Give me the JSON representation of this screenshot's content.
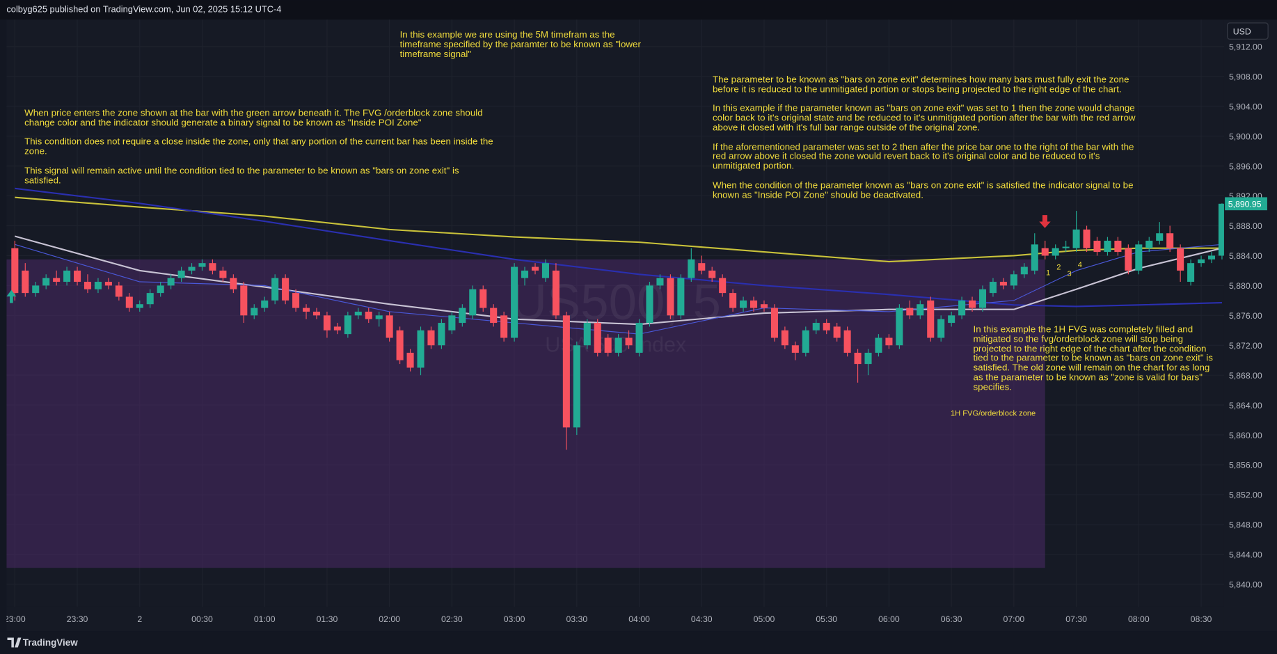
{
  "header": "colbyg625 published on TradingView.com, Jun 02, 2025 15:12 UTC-4",
  "footer": "TradingView",
  "currency": "USD",
  "chart_data": {
    "type": "candlestick",
    "watermark": "US500, 5",
    "watermark_subtitle": "USA 500 Index",
    "up_color": "#22ab94",
    "down_color": "#f7525f",
    "grid": true,
    "ylim": [
      5837,
      5915.6
    ],
    "yticks": [
      {
        "value": 5840,
        "label": "5,840.00"
      },
      {
        "value": 5844,
        "label": "5,844.00"
      },
      {
        "value": 5848,
        "label": "5,848.00"
      },
      {
        "value": 5852,
        "label": "5,852.00"
      },
      {
        "value": 5856,
        "label": "5,856.00"
      },
      {
        "value": 5860,
        "label": "5,860.00"
      },
      {
        "value": 5864,
        "label": "5,864.00"
      },
      {
        "value": 5868,
        "label": "5,868.00"
      },
      {
        "value": 5872,
        "label": "5,872.00"
      },
      {
        "value": 5876,
        "label": "5,876.00"
      },
      {
        "value": 5880,
        "label": "5,880.00"
      },
      {
        "value": 5884,
        "label": "5,884.00"
      },
      {
        "value": 5888,
        "label": "5,888.00"
      },
      {
        "value": 5892,
        "label": "5,892.00"
      },
      {
        "value": 5896,
        "label": "5,896.00"
      },
      {
        "value": 5900,
        "label": "5,900.00"
      },
      {
        "value": 5904,
        "label": "5,904.00"
      },
      {
        "value": 5908,
        "label": "5,908.00"
      },
      {
        "value": 5912,
        "label": "5,912.00"
      }
    ],
    "xlim": [
      "22:56",
      "08:41"
    ],
    "xticks": [
      "23:00",
      "23:30",
      {
        "value": "00:00",
        "label": "2"
      },
      "00:30",
      "01:00",
      "01:30",
      "02:00",
      "02:30",
      "03:00",
      "03:30",
      "04:00",
      "04:30",
      "05:00",
      "05:30",
      "06:00",
      "06:30",
      "07:00",
      "07:30",
      "08:00",
      "08:30"
    ],
    "last_price_label": "5,890.95",
    "x": [
      "23:00",
      "23:05",
      "23:10",
      "23:15",
      "23:20",
      "23:25",
      "23:30",
      "23:35",
      "23:40",
      "23:45",
      "23:50",
      "23:55",
      "00:00",
      "00:05",
      "00:10",
      "00:15",
      "00:20",
      "00:25",
      "00:30",
      "00:35",
      "00:40",
      "00:45",
      "00:50",
      "00:55",
      "01:00",
      "01:05",
      "01:10",
      "01:15",
      "01:20",
      "01:25",
      "01:30",
      "01:35",
      "01:40",
      "01:45",
      "01:50",
      "01:55",
      "02:00",
      "02:05",
      "02:10",
      "02:15",
      "02:20",
      "02:25",
      "02:30",
      "02:35",
      "02:40",
      "02:45",
      "02:50",
      "02:55",
      "03:00",
      "03:05",
      "03:10",
      "03:15",
      "03:20",
      "03:25",
      "03:30",
      "03:35",
      "03:40",
      "03:45",
      "03:50",
      "03:55",
      "04:00",
      "04:05",
      "04:10",
      "04:15",
      "04:20",
      "04:25",
      "04:30",
      "04:35",
      "04:40",
      "04:45",
      "04:50",
      "04:55",
      "05:00",
      "05:05",
      "05:10",
      "05:15",
      "05:20",
      "05:25",
      "05:30",
      "05:35",
      "05:40",
      "05:45",
      "05:50",
      "05:55",
      "06:00",
      "06:05",
      "06:10",
      "06:15",
      "06:20",
      "06:25",
      "06:30",
      "06:35",
      "06:40",
      "06:45",
      "06:50",
      "06:55",
      "07:00",
      "07:05",
      "07:10",
      "07:15",
      "07:20",
      "07:25",
      "07:30",
      "07:35",
      "07:40",
      "07:45",
      "07:50",
      "07:55",
      "08:00",
      "08:05",
      "08:10",
      "08:15",
      "08:20",
      "08:25",
      "08:30",
      "08:35",
      "08:40"
    ],
    "ohlc": [
      [
        5885,
        5886,
        5878,
        5879
      ],
      [
        5882,
        5883,
        5878.5,
        5879
      ],
      [
        5879,
        5880.5,
        5878.5,
        5880
      ],
      [
        5880,
        5881.5,
        5879.5,
        5881
      ],
      [
        5881,
        5882,
        5880,
        5880.5
      ],
      [
        5880.5,
        5882.5,
        5880,
        5882
      ],
      [
        5882,
        5882.5,
        5880,
        5880.5
      ],
      [
        5880.5,
        5881.5,
        5879,
        5879.5
      ],
      [
        5879.5,
        5881,
        5879,
        5880.5
      ],
      [
        5880.5,
        5881,
        5879.5,
        5880
      ],
      [
        5880,
        5880.5,
        5878,
        5878.5
      ],
      [
        5878.5,
        5879,
        5876.5,
        5877
      ],
      [
        5877,
        5878,
        5876.5,
        5877.5
      ],
      [
        5877.5,
        5879.5,
        5877,
        5879
      ],
      [
        5879,
        5880.5,
        5878.5,
        5880
      ],
      [
        5880,
        5881.5,
        5879.5,
        5881
      ],
      [
        5881,
        5882.5,
        5880.5,
        5882
      ],
      [
        5882,
        5883,
        5881.5,
        5882.5
      ],
      [
        5882.5,
        5883.5,
        5882,
        5883
      ],
      [
        5883,
        5883.5,
        5881.5,
        5882
      ],
      [
        5882,
        5882.5,
        5880.5,
        5881
      ],
      [
        5881,
        5881.5,
        5879,
        5879.5
      ],
      [
        5880,
        5880.5,
        5875,
        5876
      ],
      [
        5876,
        5877.5,
        5875.5,
        5877
      ],
      [
        5877,
        5878.5,
        5876.5,
        5878
      ],
      [
        5878,
        5881.5,
        5877.5,
        5881
      ],
      [
        5881,
        5881.5,
        5877.5,
        5878
      ],
      [
        5879,
        5879.5,
        5876.5,
        5877
      ],
      [
        5877,
        5877.5,
        5875.5,
        5876.5
      ],
      [
        5876.5,
        5877,
        5875.5,
        5876
      ],
      [
        5876,
        5876.5,
        5873,
        5874
      ],
      [
        5874.5,
        5875,
        5873.5,
        5874
      ],
      [
        5873.5,
        5876.5,
        5873,
        5876
      ],
      [
        5876,
        5877,
        5875.5,
        5876.5
      ],
      [
        5876.5,
        5877,
        5875,
        5875.5
      ],
      [
        5875.5,
        5876.5,
        5874.5,
        5876
      ],
      [
        5876,
        5876.5,
        5872.5,
        5873
      ],
      [
        5874,
        5874.5,
        5869.5,
        5870
      ],
      [
        5871,
        5871.5,
        5868.5,
        5869
      ],
      [
        5869,
        5874.5,
        5868,
        5874
      ],
      [
        5874,
        5874.5,
        5871.5,
        5872
      ],
      [
        5872,
        5875.5,
        5871.5,
        5875
      ],
      [
        5874,
        5876.5,
        5873.5,
        5876
      ],
      [
        5875,
        5877.5,
        5874.5,
        5877
      ],
      [
        5876,
        5880,
        5875.5,
        5879.5
      ],
      [
        5879.5,
        5880,
        5876.5,
        5877
      ],
      [
        5877,
        5877.5,
        5874.5,
        5875
      ],
      [
        5876,
        5876.5,
        5872.5,
        5873
      ],
      [
        5873,
        5883,
        5872.5,
        5882.5
      ],
      [
        5881,
        5882.5,
        5880,
        5882
      ],
      [
        5882.5,
        5883,
        5881.5,
        5882
      ],
      [
        5881,
        5883.5,
        5880.5,
        5883
      ],
      [
        5882,
        5883,
        5875.5,
        5876
      ],
      [
        5876,
        5876.5,
        5858,
        5861
      ],
      [
        5861,
        5872.5,
        5860,
        5872
      ],
      [
        5872,
        5875.5,
        5871.5,
        5875
      ],
      [
        5875,
        5875.5,
        5870.5,
        5871
      ],
      [
        5873,
        5873.5,
        5870.5,
        5871
      ],
      [
        5871,
        5873.5,
        5870.5,
        5873
      ],
      [
        5873,
        5874,
        5871.5,
        5872
      ],
      [
        5871,
        5875.5,
        5870.5,
        5875
      ],
      [
        5875,
        5880.5,
        5874.5,
        5880
      ],
      [
        5880,
        5881.5,
        5879.5,
        5881
      ],
      [
        5881,
        5881.5,
        5875.5,
        5876
      ],
      [
        5876,
        5881.5,
        5875.5,
        5881
      ],
      [
        5881,
        5885,
        5880.5,
        5883.5
      ],
      [
        5883,
        5884,
        5881.5,
        5882
      ],
      [
        5882,
        5882.5,
        5880.5,
        5881
      ],
      [
        5881,
        5881.5,
        5878.5,
        5879
      ],
      [
        5879,
        5879.5,
        5876.5,
        5877
      ],
      [
        5877,
        5878.5,
        5876.5,
        5878
      ],
      [
        5878,
        5878.5,
        5876.5,
        5877
      ],
      [
        5877.5,
        5878,
        5876.5,
        5877
      ],
      [
        5877,
        5877.5,
        5872.5,
        5873
      ],
      [
        5874,
        5874.5,
        5871.5,
        5872
      ],
      [
        5872,
        5872.5,
        5870,
        5871
      ],
      [
        5871,
        5874.5,
        5870.5,
        5874
      ],
      [
        5874,
        5875.5,
        5873.5,
        5875
      ],
      [
        5875,
        5875.5,
        5873.5,
        5874
      ],
      [
        5874.5,
        5875,
        5872.5,
        5873
      ],
      [
        5874,
        5874.5,
        5870.5,
        5871
      ],
      [
        5871,
        5871.5,
        5867,
        5869.5
      ],
      [
        5869.5,
        5871.5,
        5868,
        5871
      ],
      [
        5871,
        5873.5,
        5870.5,
        5873
      ],
      [
        5873,
        5873.5,
        5871.5,
        5872
      ],
      [
        5872,
        5877.5,
        5871.5,
        5877
      ],
      [
        5877,
        5878,
        5875.5,
        5876
      ],
      [
        5876,
        5878,
        5875.5,
        5877.5
      ],
      [
        5878,
        5878.5,
        5872.5,
        5873
      ],
      [
        5873,
        5876,
        5872.5,
        5875.5
      ],
      [
        5875,
        5876.5,
        5874.5,
        5876
      ],
      [
        5876,
        5878.5,
        5875.5,
        5878
      ],
      [
        5878,
        5878.5,
        5876.5,
        5877
      ],
      [
        5877,
        5880,
        5876.5,
        5879.5
      ],
      [
        5879,
        5881,
        5878.5,
        5880.5
      ],
      [
        5880.5,
        5881,
        5879.5,
        5880
      ],
      [
        5880,
        5882,
        5879.5,
        5881.5
      ],
      [
        5881.5,
        5883,
        5881,
        5882.5
      ],
      [
        5882,
        5887,
        5881.5,
        5885.5
      ],
      [
        5885,
        5886,
        5883.5,
        5884
      ],
      [
        5884,
        5885.5,
        5883.5,
        5885
      ],
      [
        5885,
        5886,
        5884.5,
        5885.2
      ],
      [
        5885,
        5890,
        5884.5,
        5887.5
      ],
      [
        5887.5,
        5888,
        5884.5,
        5885
      ],
      [
        5886,
        5886.5,
        5884,
        5884.5
      ],
      [
        5884.5,
        5886.5,
        5884,
        5886
      ],
      [
        5886,
        5886.5,
        5884,
        5884.5
      ],
      [
        5885,
        5885.5,
        5881.5,
        5882
      ],
      [
        5882,
        5886,
        5881.5,
        5885.5
      ],
      [
        5885,
        5886.5,
        5884.5,
        5886
      ],
      [
        5886,
        5888.5,
        5885.5,
        5887
      ],
      [
        5887,
        5888,
        5884.5,
        5885
      ],
      [
        5885,
        5885.5,
        5880.5,
        5882
      ],
      [
        5880.5,
        5883.5,
        5880,
        5883
      ],
      [
        5883,
        5884,
        5882.5,
        5883.5
      ],
      [
        5883.5,
        5884.5,
        5883,
        5884
      ],
      [
        5884,
        5891,
        5883.5,
        5890.95
      ]
    ],
    "lines": [
      {
        "color": "#c9c23a",
        "times": [
          "23:00",
          "00:00",
          "01:00",
          "02:00",
          "03:00",
          "04:00",
          "05:00",
          "06:00",
          "07:00",
          "07:30",
          "08:00",
          "08:40"
        ],
        "values": [
          5891.8,
          5890.5,
          5889.3,
          5887.5,
          5886.5,
          5885.8,
          5884.5,
          5883.2,
          5884,
          5884.7,
          5885,
          5885
        ]
      },
      {
        "color": "#2a2fb0",
        "times": [
          "23:00",
          "00:00",
          "01:00",
          "02:00",
          "03:00",
          "04:00",
          "05:00",
          "06:00",
          "07:00",
          "07:30",
          "08:00",
          "08:40"
        ],
        "values": [
          5893,
          5891,
          5888.6,
          5886,
          5883.5,
          5881.5,
          5880,
          5878.8,
          5877.4,
          5877.2,
          5877.4,
          5877.7
        ]
      },
      {
        "color": "#c8c3d4",
        "times": [
          "23:00",
          "00:00",
          "01:00",
          "02:00",
          "03:00",
          "04:00",
          "05:00",
          "06:00",
          "07:00",
          "07:30",
          "08:00",
          "08:40"
        ],
        "values": [
          5886.6,
          5882,
          5879.8,
          5877.5,
          5875.5,
          5874.8,
          5876.3,
          5876.8,
          5876.8,
          5879.5,
          5882.3,
          5885
        ]
      },
      {
        "color": "#4a58d8",
        "times": [
          "23:00",
          "00:00",
          "01:00",
          "02:00",
          "03:00",
          "04:00",
          "05:00",
          "06:00",
          "07:00",
          "07:30",
          "08:00",
          "08:40"
        ],
        "values": [
          5885.5,
          5880.5,
          5880,
          5876.5,
          5875,
          5873.5,
          5877,
          5876.5,
          5878,
          5882,
          5884.5,
          5885.5
        ]
      }
    ],
    "zone": {
      "label": "1H FVG/orderblock zone",
      "top": 5883.5,
      "bottom": 5842.2,
      "end": "07:15"
    },
    "exit_counts": [
      "1",
      "2",
      "3",
      "4"
    ],
    "annotations": [
      {
        "paragraphs": [
          "In this example we are using the 5M timefram as the timeframe specified by the paramter to be known as \"lower timeframe signal\""
        ]
      },
      {
        "paragraphs": [
          "When price enters the zone shown at the bar with the green arrow beneath it. The FVG /orderblock zone should change color and the indicator should generate a binary signal to be known as \"Inside POI Zone\"",
          "This condition does not require a close inside the zone, only that any portion of the current bar has been inside the zone.",
          "This signal will remain active until the condition tied to the parameter to be known as \"bars on zone exit\" is satisfied."
        ]
      },
      {
        "paragraphs": [
          "The parameter to be known as \"bars on zone exit\" determines how many bars must fully exit the zone before it is reduced to the unmitigated portion or stops being projected to the right edge of the chart.",
          "In this example if the parameter known as \"bars on zone exit\" was set to 1 then the zone would change color back to it's original state and be reduced to it's unmitigated portion after the bar with the red arrow above it closed with it's full bar range outside of the original zone.",
          "If the aforementioned parameter was set to 2 then after the price bar one to the right of the bar with the red arrow above it closed the zone would revert back to it's original color and be reduced to it's unmitigated portion.",
          "When the condition of the parameter known as \"bars on zone exit\" is satisfied the indicator signal to be known as \"Inside POI Zone\" should be deactivated."
        ]
      },
      {
        "paragraphs": [
          "In this example the 1H FVG was completely filled and mitigated so the fvg/orderblock zone will stop being projected to the right edge of the chart after the condition tied to the parameter to be known as \"bars on zone exit\" is satisfied. The old zone will remain on the chart for as long as the parameter to be known as \"zone is valid for bars\" specifies."
        ]
      }
    ]
  }
}
